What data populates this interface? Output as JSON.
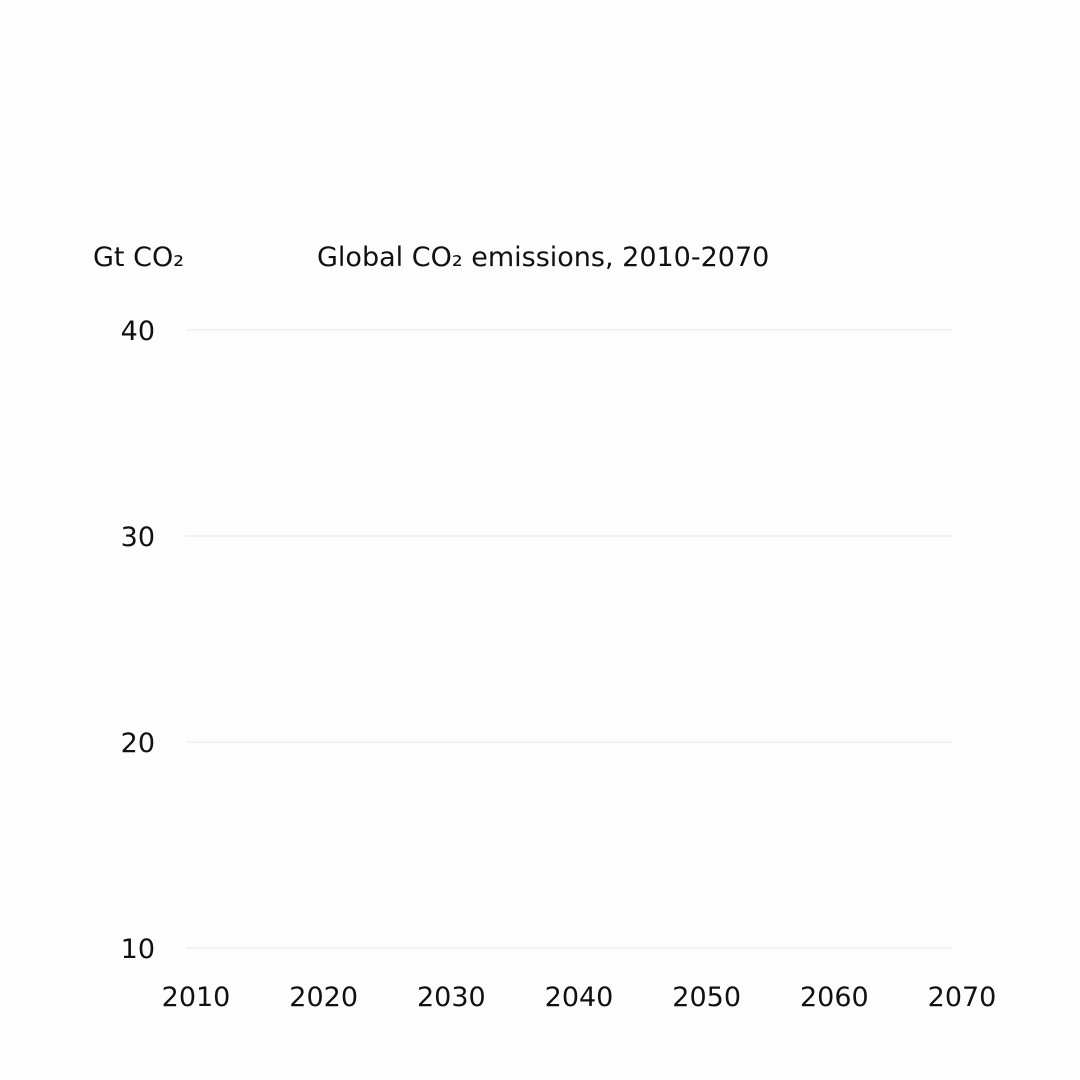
{
  "chart_data": {
    "type": "line",
    "title": "Global CO₂ emissions, 2010-2070",
    "ylabel": "Gt CO₂",
    "xlabel": "",
    "x_ticks": [
      2010,
      2020,
      2030,
      2040,
      2050,
      2060,
      2070
    ],
    "y_ticks": [
      10,
      20,
      30,
      40
    ],
    "xlim": [
      2010,
      2070
    ],
    "ylim": [
      10,
      40
    ],
    "grid": "horizontal",
    "series": []
  }
}
